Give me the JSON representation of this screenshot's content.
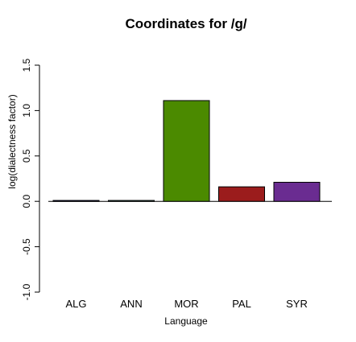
{
  "chart_data": {
    "type": "bar",
    "title": "Coordinates for /g/",
    "xlabel": "Language",
    "ylabel": "log(dialectness factor)",
    "categories": [
      "ALG",
      "ANN",
      "MOR",
      "PAL",
      "SYR"
    ],
    "values": [
      0.01,
      0.01,
      1.11,
      0.16,
      0.21
    ],
    "colors": [
      "#1c1f66",
      "#3a7a6a",
      "#4b8a00",
      "#9b1c1c",
      "#6a2c91"
    ],
    "ylim": [
      -1.0,
      1.5
    ],
    "yticks": [
      -1.0,
      -0.5,
      0.0,
      0.5,
      1.0,
      1.5
    ],
    "ytick_labels": [
      "-1.0",
      "-0.5",
      "0.0",
      "0.5",
      "1.0",
      "1.5"
    ],
    "grid": false,
    "legend": "none"
  }
}
